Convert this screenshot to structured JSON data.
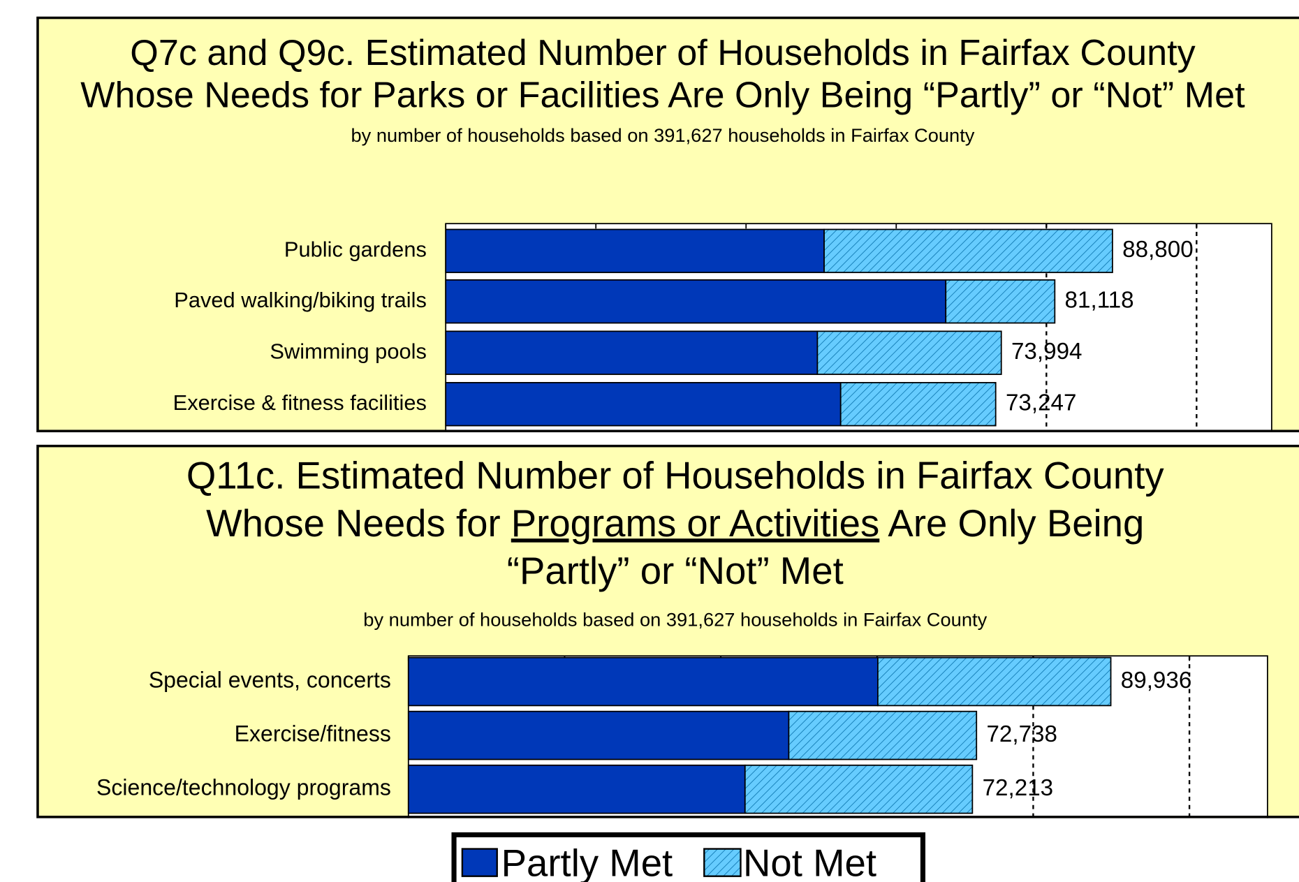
{
  "chart_data": [
    {
      "type": "bar",
      "orientation": "horizontal",
      "stacked": true,
      "title": [
        "Q7c and Q9c. Estimated Number of Households in Fairfax County",
        "Whose Needs for Parks or Facilities Are Only Being “Partly” or “Not” Met"
      ],
      "subtitle": "by number of households based on 391,627 households in Fairfax County",
      "categories": [
        "Public gardens",
        "Paved walking/biking trails",
        "Swimming pools",
        "Exercise & fitness facilities"
      ],
      "series": [
        {
          "name": "Partly Met",
          "color": "#0038b8",
          "values": [
            50400,
            66600,
            49500,
            52600
          ]
        },
        {
          "name": "Not Met",
          "color": "#66ccff",
          "pattern": "hatch",
          "values": [
            38400,
            14518,
            24494,
            20647
          ]
        }
      ],
      "totals": [
        88800,
        81118,
        73994,
        73247
      ],
      "total_labels": [
        "88,800",
        "81,118",
        "73,994",
        "73,247"
      ],
      "xlim": [
        0,
        110000
      ],
      "xticks": [
        0,
        20000,
        40000,
        60000,
        80000,
        100000
      ],
      "reference_lines": [
        80000,
        100000
      ],
      "grid": false
    },
    {
      "type": "bar",
      "orientation": "horizontal",
      "stacked": true,
      "title": [
        [
          "Q11c. Estimated Number of Households in Fairfax County"
        ],
        [
          "Whose Needs for ",
          "Programs or Activities",
          " Are Only Being"
        ],
        [
          "“Partly” or “Not” Met"
        ]
      ],
      "title_underline": [
        1,
        1
      ],
      "subtitle": "by number of households based on 391,627 households in Fairfax County",
      "categories": [
        "Special events, concerts",
        "Exercise/fitness",
        "Science/technology programs"
      ],
      "series": [
        {
          "color": "#0038b8",
          "values": [
            60100,
            48700,
            43100
          ]
        },
        {
          "color": "#66ccff",
          "pattern": "hatch",
          "values": [
            29836,
            24038,
            29113
          ]
        }
      ],
      "totals": [
        89936,
        72738,
        72213
      ],
      "total_labels": [
        "89,936",
        "72,738",
        "72,213"
      ],
      "xlim": [
        0,
        110000
      ],
      "xticks": [
        0,
        20000,
        40000,
        60000,
        80000,
        100000
      ],
      "reference_lines": [
        80000,
        100000
      ],
      "grid": false
    }
  ]
}
